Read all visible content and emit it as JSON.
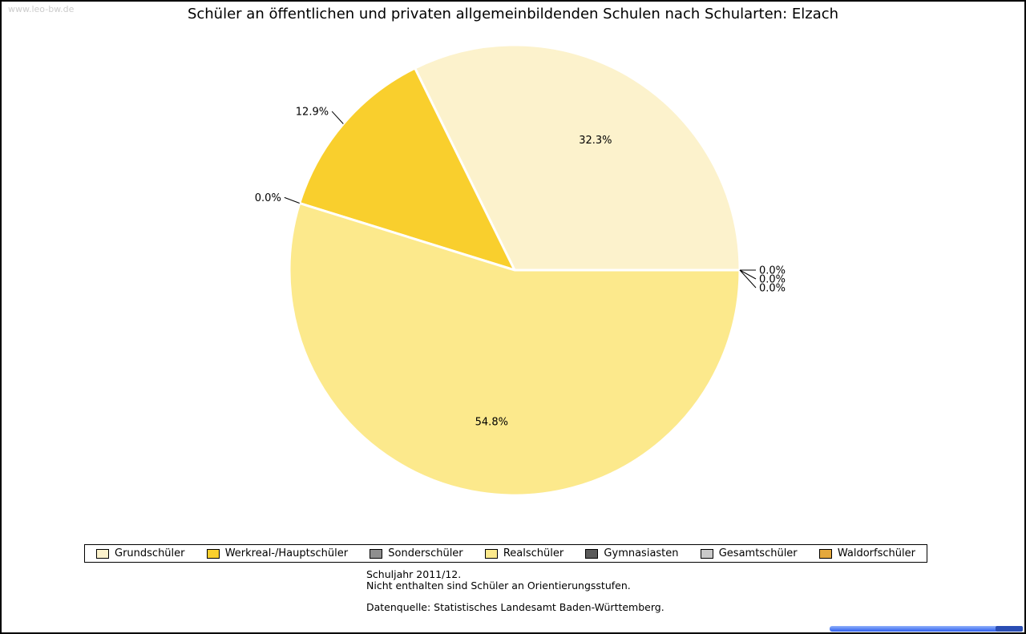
{
  "page": {
    "watermark": "www.leo-bw.de",
    "title": "Schüler an öffentlichen und privaten allgemeinbildenden Schulen nach Schularten: Elzach"
  },
  "chart_data": {
    "type": "pie",
    "title": "Schüler an öffentlichen und privaten allgemeinbildenden Schulen nach Schularten: Elzach",
    "value_unit": "percent",
    "start_angle_deg": 0,
    "direction": "counterclockwise",
    "legend_position": "bottom",
    "slices": [
      {
        "label": "Grundschüler",
        "value": 32.3,
        "data_label": "32.3%",
        "color": "#FCF2CC"
      },
      {
        "label": "Werkreal-/Hauptschüler",
        "value": 12.9,
        "data_label": "12.9%",
        "color": "#F9CF2D"
      },
      {
        "label": "Sonderschüler",
        "value": 0.0,
        "data_label": "0.0%",
        "color": "#8F8F8F"
      },
      {
        "label": "Realschüler",
        "value": 54.8,
        "data_label": "54.8%",
        "color": "#FCE98C"
      },
      {
        "label": "Gymnasiasten",
        "value": 0.0,
        "data_label": "0.0%",
        "color": "#5A5A5A"
      },
      {
        "label": "Gesamtschüler",
        "value": 0.0,
        "data_label": "0.0%",
        "color": "#C9C9C9"
      },
      {
        "label": "Waldorfschüler",
        "value": 0.0,
        "data_label": "0.0%",
        "color": "#E4A83C"
      }
    ]
  },
  "footer": {
    "line1": "Schuljahr 2011/12.",
    "line2": "Nicht enthalten sind Schüler an Orientierungsstufen.",
    "source": "Datenquelle: Statistisches Landesamt Baden-Württemberg."
  },
  "scrollbar": {
    "thumb_color": "#2E5FF0"
  }
}
